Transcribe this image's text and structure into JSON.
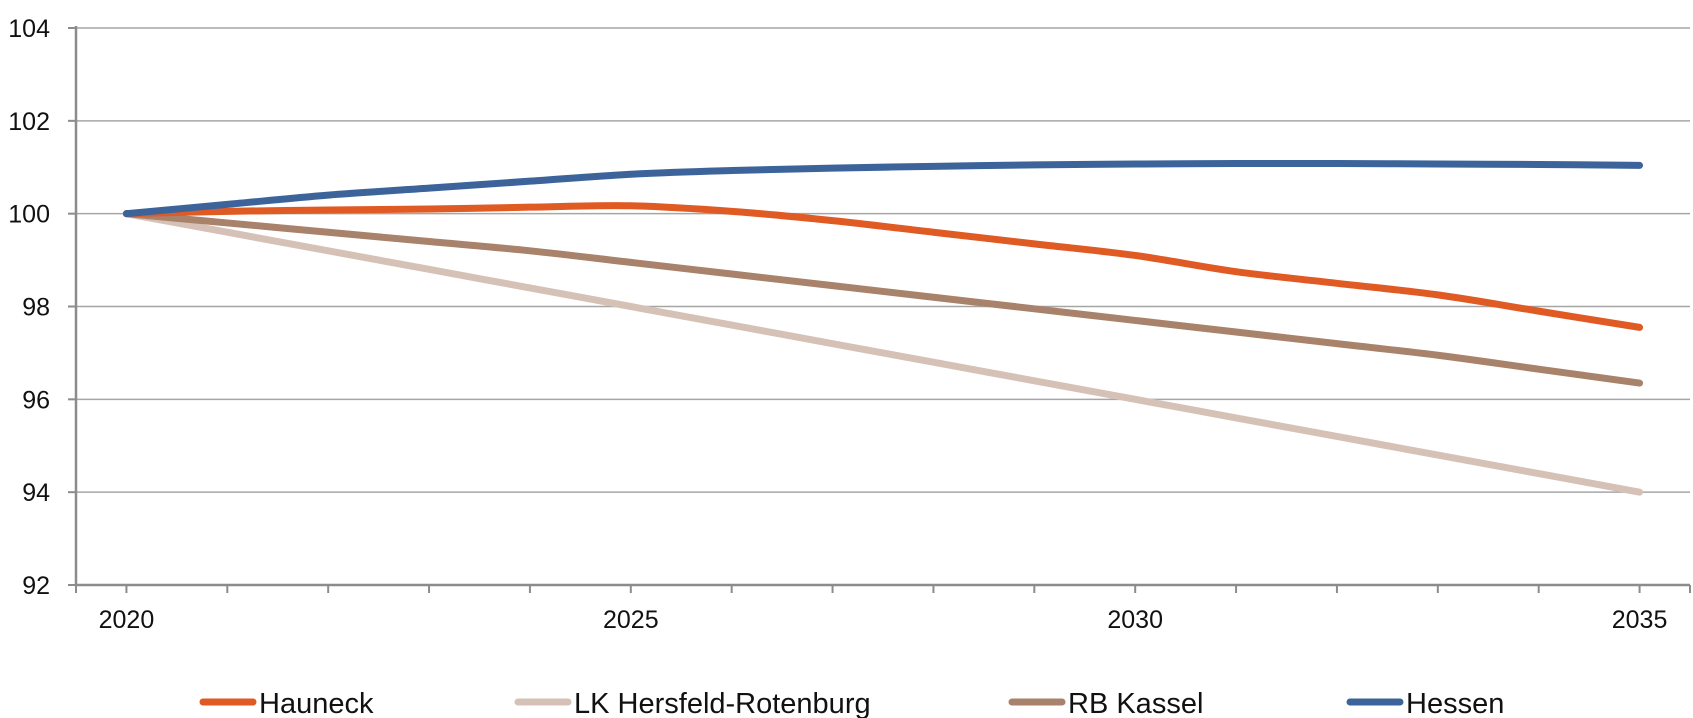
{
  "chart_data": {
    "type": "line",
    "title": "",
    "xlabel": "",
    "ylabel": "",
    "x": [
      2020,
      2021,
      2022,
      2023,
      2024,
      2025,
      2026,
      2027,
      2028,
      2029,
      2030,
      2031,
      2032,
      2033,
      2034,
      2035
    ],
    "xlim": [
      2019.5,
      2035.5
    ],
    "ylim": [
      92,
      104
    ],
    "x_ticks": [
      2020,
      2025,
      2030,
      2035
    ],
    "y_ticks": [
      92,
      94,
      96,
      98,
      100,
      102,
      104
    ],
    "grid": "horizontal",
    "legend_position": "bottom",
    "series": [
      {
        "name": "Hauneck",
        "color": "#e05a24",
        "values": [
          100,
          100.05,
          100.08,
          100.1,
          100.14,
          100.17,
          100.05,
          99.85,
          99.6,
          99.35,
          99.1,
          98.75,
          98.5,
          98.25,
          97.9,
          97.55
        ]
      },
      {
        "name": "LK Hersfeld-Rotenburg",
        "color": "#d6c1b6",
        "values": [
          100,
          99.6,
          99.2,
          98.8,
          98.4,
          98.0,
          97.6,
          97.2,
          96.8,
          96.4,
          96.0,
          95.6,
          95.2,
          94.8,
          94.4,
          94.0
        ]
      },
      {
        "name": "RB Kassel",
        "color": "#a8826a",
        "values": [
          100,
          99.8,
          99.6,
          99.4,
          99.2,
          98.95,
          98.7,
          98.45,
          98.2,
          97.95,
          97.7,
          97.45,
          97.2,
          96.95,
          96.65,
          96.35
        ]
      },
      {
        "name": "Hessen",
        "color": "#3c649a",
        "values": [
          100,
          100.2,
          100.4,
          100.55,
          100.7,
          100.85,
          100.93,
          100.98,
          101.02,
          101.05,
          101.07,
          101.08,
          101.08,
          101.07,
          101.06,
          101.04
        ]
      }
    ]
  }
}
